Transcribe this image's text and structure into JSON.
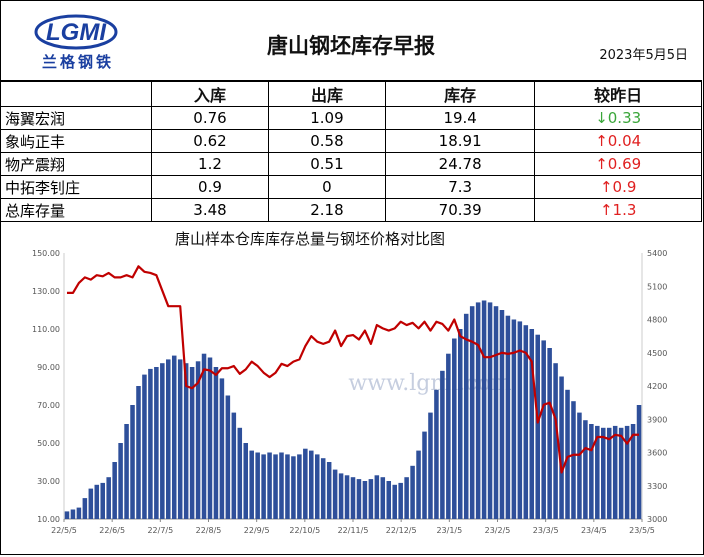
{
  "report": {
    "title": "唐山钢坯库存早报",
    "date": "2023年5月5日",
    "logo": {
      "text": "LGMI",
      "subtitle": "兰格钢铁",
      "color": "#1a3fa0"
    }
  },
  "table": {
    "headers": [
      "",
      "入库",
      "出库",
      "库存",
      "较昨日"
    ],
    "rows": [
      {
        "name": "海翼宏润",
        "in": "0.76",
        "out": "1.09",
        "stock": "19.4",
        "change": "↓0.33",
        "dir": "down"
      },
      {
        "name": "象屿正丰",
        "in": "0.62",
        "out": "0.58",
        "stock": "18.91",
        "change": "↑0.04",
        "dir": "up"
      },
      {
        "name": "物产震翔",
        "in": "1.2",
        "out": "0.51",
        "stock": "24.78",
        "change": "↑0.69",
        "dir": "up"
      },
      {
        "name": "中拓李钊庄",
        "in": "0.9",
        "out": "0",
        "stock": "7.3",
        "change": "↑0.9",
        "dir": "up"
      },
      {
        "name": "总库存量",
        "in": "3.48",
        "out": "2.18",
        "stock": "70.39",
        "change": "↑1.3",
        "dir": "up"
      }
    ]
  },
  "chart_data": {
    "type": "bar+line",
    "title": "唐山样本仓库库存总量与钢坯价格对比图",
    "watermark": "www.lgmi.com",
    "x_ticks": [
      "22/5/5",
      "22/6/5",
      "22/7/5",
      "22/8/5",
      "22/9/5",
      "22/10/5",
      "22/11/5",
      "22/12/5",
      "23/1/5",
      "23/2/5",
      "23/3/5",
      "23/4/5",
      "23/5/5"
    ],
    "left_axis": {
      "ticks": [
        "150.00",
        "130.00",
        "110.00",
        "90.00",
        "70.00",
        "50.00",
        "30.00",
        "10.00"
      ],
      "ylim": [
        10,
        150
      ]
    },
    "right_axis": {
      "ticks": [
        "5400",
        "5100",
        "4800",
        "4500",
        "4200",
        "3900",
        "3600",
        "3300",
        "3000"
      ],
      "ylim": [
        3000,
        5400
      ]
    },
    "colors": {
      "bar": "#2e4f9a",
      "line": "#c00000"
    },
    "series": [
      {
        "kind": "bar",
        "axis": "left",
        "values": [
          14,
          15,
          16,
          21,
          26,
          28,
          29,
          32,
          40,
          50,
          60,
          70,
          80,
          86,
          89,
          90,
          92,
          94,
          96,
          94,
          92,
          90,
          93,
          97,
          95,
          90,
          84,
          75,
          66,
          58,
          50,
          46,
          45,
          44,
          45,
          44,
          45,
          44,
          43,
          44,
          47,
          46,
          44,
          42,
          40,
          36,
          34,
          33,
          32,
          31,
          30,
          31,
          33,
          32,
          30,
          28,
          29,
          32,
          38,
          46,
          56,
          66,
          78,
          88,
          97,
          105,
          110,
          118,
          122,
          124,
          125,
          124,
          122,
          120,
          117,
          115,
          114,
          112,
          110,
          107,
          104,
          100,
          92,
          85,
          78,
          72,
          66,
          62,
          60,
          59,
          58,
          58,
          59,
          58,
          59,
          60,
          70
        ]
      },
      {
        "kind": "line",
        "axis": "right",
        "values": [
          5040,
          5040,
          5130,
          5180,
          5160,
          5200,
          5190,
          5220,
          5180,
          5180,
          5200,
          5180,
          5280,
          5230,
          5220,
          5200,
          5060,
          4920,
          4920,
          4920,
          4200,
          4180,
          4230,
          4350,
          4340,
          4300,
          4360,
          4360,
          4380,
          4310,
          4350,
          4420,
          4380,
          4320,
          4280,
          4320,
          4400,
          4380,
          4420,
          4440,
          4560,
          4650,
          4600,
          4580,
          4600,
          4700,
          4560,
          4650,
          4660,
          4620,
          4700,
          4580,
          4750,
          4720,
          4700,
          4720,
          4780,
          4750,
          4770,
          4720,
          4780,
          4700,
          4780,
          4760,
          4700,
          4800,
          4650,
          4620,
          4600,
          4570,
          4460,
          4460,
          4480,
          4500,
          4490,
          4500,
          4520,
          4500,
          4420,
          3870,
          4030,
          4050,
          3900,
          3420,
          3560,
          3580,
          3580,
          3640,
          3620,
          3740,
          3740,
          3720,
          3760,
          3750,
          3680,
          3760,
          3760
        ]
      }
    ]
  }
}
